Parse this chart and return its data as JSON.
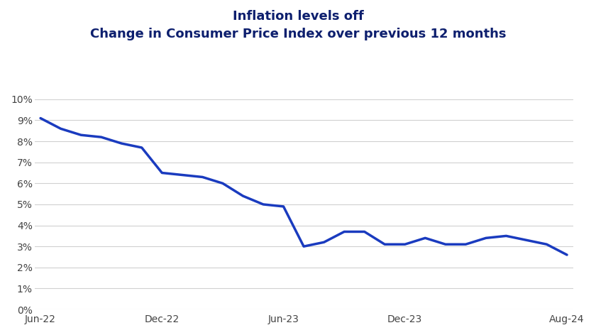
{
  "title_line1": "Inflation levels off",
  "title_line2": "Change in Consumer Price Index over previous 12 months",
  "title_color": "#0d1f6e",
  "background_color": "#ffffff",
  "line_color": "#1a3bbf",
  "line_width": 2.5,
  "ylim": [
    0,
    0.1
  ],
  "yticks": [
    0.0,
    0.01,
    0.02,
    0.03,
    0.04,
    0.05,
    0.06,
    0.07,
    0.08,
    0.09,
    0.1
  ],
  "xtick_labels": [
    "Jun-22",
    "Dec-22",
    "Jun-23",
    "Dec-23",
    "Aug-24"
  ],
  "xtick_positions": [
    0,
    6,
    12,
    18,
    26
  ],
  "grid_color": "#d0d0d0",
  "months": [
    0,
    1,
    2,
    3,
    4,
    5,
    6,
    7,
    8,
    9,
    10,
    11,
    12,
    13,
    14,
    15,
    16,
    17,
    18,
    19,
    20,
    21,
    22,
    23,
    24,
    25,
    26
  ],
  "values": [
    0.091,
    0.086,
    0.083,
    0.082,
    0.079,
    0.077,
    0.065,
    0.064,
    0.063,
    0.06,
    0.054,
    0.05,
    0.049,
    0.03,
    0.032,
    0.037,
    0.037,
    0.031,
    0.031,
    0.034,
    0.031,
    0.031,
    0.034,
    0.035,
    0.033,
    0.031,
    0.026
  ]
}
